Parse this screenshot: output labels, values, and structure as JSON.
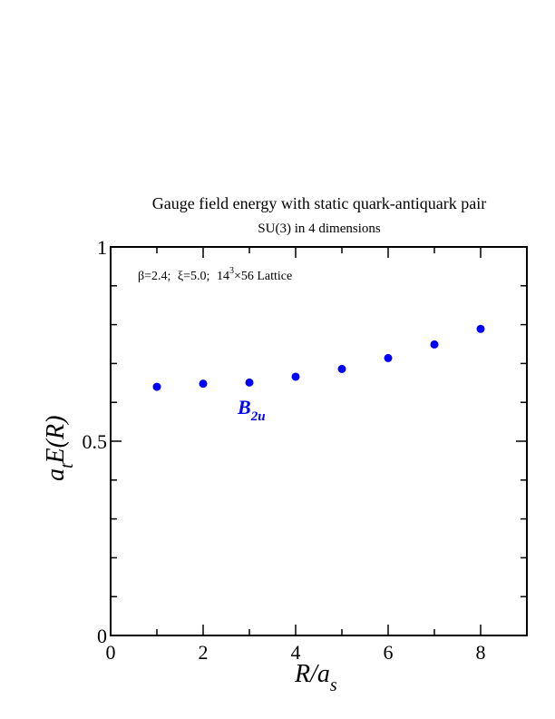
{
  "chart_data": {
    "type": "scatter",
    "title": "Gauge field energy with static quark-antiquark pair",
    "subtitle": "SU(3) in 4 dimensions",
    "xlabel": {
      "main": "R/a",
      "sub": "s"
    },
    "ylabel": {
      "pre": "a",
      "sub": "t",
      "post": "E(R)"
    },
    "xlim": [
      0,
      9
    ],
    "ylim": [
      0,
      1
    ],
    "x_ticks": [
      "0",
      "2",
      "4",
      "6",
      "8"
    ],
    "y_ticks": [
      "0",
      "0.5",
      "1"
    ],
    "annotation": {
      "beta": "β=2.4;",
      "xi": "ξ=5.0;",
      "lattice_pre": "14",
      "lattice_sup": "3",
      "lattice_post": "×56 Lattice"
    },
    "series": [
      {
        "name": "B2u",
        "label_main": "B",
        "label_sub": "2u",
        "color": "#0000ff",
        "x": [
          1,
          2,
          3,
          4,
          5,
          6,
          7,
          8
        ],
        "y": [
          0.64,
          0.648,
          0.651,
          0.666,
          0.686,
          0.714,
          0.749,
          0.789
        ]
      }
    ]
  }
}
